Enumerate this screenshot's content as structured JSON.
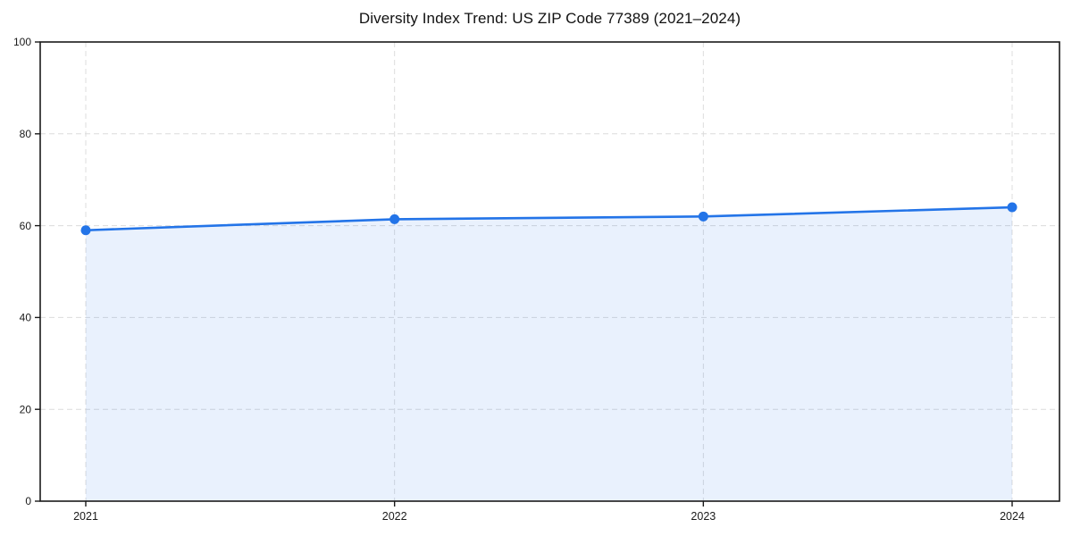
{
  "chart_data": {
    "type": "line",
    "title": "Diversity Index Trend: US ZIP Code 77389 (2021–2024)",
    "x": [
      "2021",
      "2022",
      "2023",
      "2024"
    ],
    "series": [
      {
        "name": "Diversity Index",
        "values": [
          59.0,
          61.4,
          62.0,
          64.0
        ],
        "marker": "circle",
        "area_fill": true
      }
    ],
    "xlabel": "",
    "ylabel": "",
    "ylim": [
      0,
      100
    ],
    "yticks": [
      0,
      20,
      40,
      60,
      80,
      100
    ],
    "grid": true,
    "grid_style": "dashed",
    "legend": "none",
    "colors": {
      "line": "#2374e8",
      "marker": "#2374e8",
      "area_fill": "#2374e8",
      "area_fill_opacity": "0.10",
      "grid": "#dcdcdc",
      "axis": "#1a1a1a",
      "tick_label": "#1a1a1a",
      "background": "#ffffff"
    }
  }
}
